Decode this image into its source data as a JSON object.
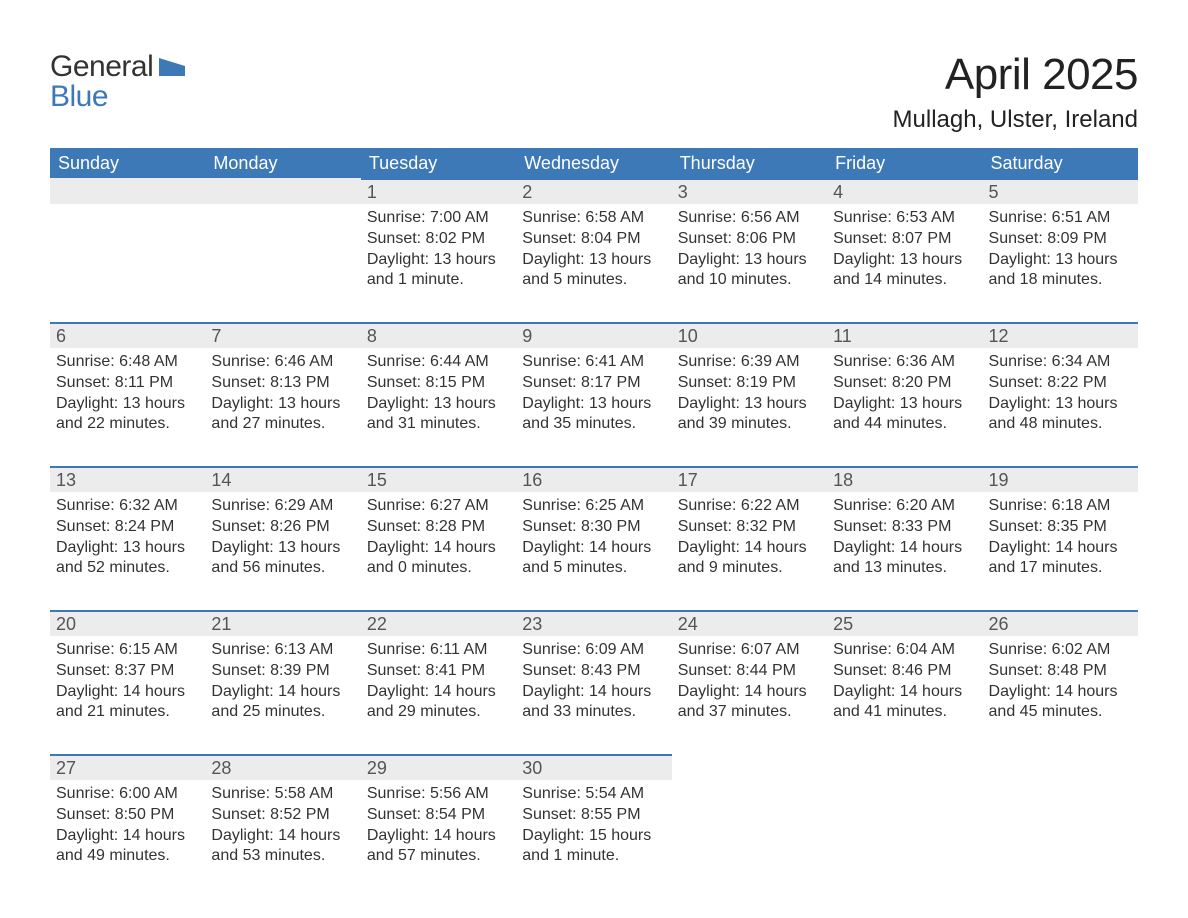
{
  "logo": {
    "word1": "General",
    "word2": "Blue",
    "mark_color": "#3d78b7"
  },
  "header": {
    "title": "April 2025",
    "location": "Mullagh, Ulster, Ireland"
  },
  "calendar": {
    "day_headers": [
      "Sunday",
      "Monday",
      "Tuesday",
      "Wednesday",
      "Thursday",
      "Friday",
      "Saturday"
    ],
    "header_bg": "#3d78b7",
    "header_fg": "#ffffff",
    "daynum_bg": "#ececec",
    "daynum_border": "#3d78b7",
    "text_color": "#333333",
    "weeks": [
      [
        {
          "day": "",
          "sunrise": "",
          "sunset": "",
          "daylight": ""
        },
        {
          "day": "",
          "sunrise": "",
          "sunset": "",
          "daylight": ""
        },
        {
          "day": "1",
          "sunrise": "Sunrise: 7:00 AM",
          "sunset": "Sunset: 8:02 PM",
          "daylight": "Daylight: 13 hours and 1 minute."
        },
        {
          "day": "2",
          "sunrise": "Sunrise: 6:58 AM",
          "sunset": "Sunset: 8:04 PM",
          "daylight": "Daylight: 13 hours and 5 minutes."
        },
        {
          "day": "3",
          "sunrise": "Sunrise: 6:56 AM",
          "sunset": "Sunset: 8:06 PM",
          "daylight": "Daylight: 13 hours and 10 minutes."
        },
        {
          "day": "4",
          "sunrise": "Sunrise: 6:53 AM",
          "sunset": "Sunset: 8:07 PM",
          "daylight": "Daylight: 13 hours and 14 minutes."
        },
        {
          "day": "5",
          "sunrise": "Sunrise: 6:51 AM",
          "sunset": "Sunset: 8:09 PM",
          "daylight": "Daylight: 13 hours and 18 minutes."
        }
      ],
      [
        {
          "day": "6",
          "sunrise": "Sunrise: 6:48 AM",
          "sunset": "Sunset: 8:11 PM",
          "daylight": "Daylight: 13 hours and 22 minutes."
        },
        {
          "day": "7",
          "sunrise": "Sunrise: 6:46 AM",
          "sunset": "Sunset: 8:13 PM",
          "daylight": "Daylight: 13 hours and 27 minutes."
        },
        {
          "day": "8",
          "sunrise": "Sunrise: 6:44 AM",
          "sunset": "Sunset: 8:15 PM",
          "daylight": "Daylight: 13 hours and 31 minutes."
        },
        {
          "day": "9",
          "sunrise": "Sunrise: 6:41 AM",
          "sunset": "Sunset: 8:17 PM",
          "daylight": "Daylight: 13 hours and 35 minutes."
        },
        {
          "day": "10",
          "sunrise": "Sunrise: 6:39 AM",
          "sunset": "Sunset: 8:19 PM",
          "daylight": "Daylight: 13 hours and 39 minutes."
        },
        {
          "day": "11",
          "sunrise": "Sunrise: 6:36 AM",
          "sunset": "Sunset: 8:20 PM",
          "daylight": "Daylight: 13 hours and 44 minutes."
        },
        {
          "day": "12",
          "sunrise": "Sunrise: 6:34 AM",
          "sunset": "Sunset: 8:22 PM",
          "daylight": "Daylight: 13 hours and 48 minutes."
        }
      ],
      [
        {
          "day": "13",
          "sunrise": "Sunrise: 6:32 AM",
          "sunset": "Sunset: 8:24 PM",
          "daylight": "Daylight: 13 hours and 52 minutes."
        },
        {
          "day": "14",
          "sunrise": "Sunrise: 6:29 AM",
          "sunset": "Sunset: 8:26 PM",
          "daylight": "Daylight: 13 hours and 56 minutes."
        },
        {
          "day": "15",
          "sunrise": "Sunrise: 6:27 AM",
          "sunset": "Sunset: 8:28 PM",
          "daylight": "Daylight: 14 hours and 0 minutes."
        },
        {
          "day": "16",
          "sunrise": "Sunrise: 6:25 AM",
          "sunset": "Sunset: 8:30 PM",
          "daylight": "Daylight: 14 hours and 5 minutes."
        },
        {
          "day": "17",
          "sunrise": "Sunrise: 6:22 AM",
          "sunset": "Sunset: 8:32 PM",
          "daylight": "Daylight: 14 hours and 9 minutes."
        },
        {
          "day": "18",
          "sunrise": "Sunrise: 6:20 AM",
          "sunset": "Sunset: 8:33 PM",
          "daylight": "Daylight: 14 hours and 13 minutes."
        },
        {
          "day": "19",
          "sunrise": "Sunrise: 6:18 AM",
          "sunset": "Sunset: 8:35 PM",
          "daylight": "Daylight: 14 hours and 17 minutes."
        }
      ],
      [
        {
          "day": "20",
          "sunrise": "Sunrise: 6:15 AM",
          "sunset": "Sunset: 8:37 PM",
          "daylight": "Daylight: 14 hours and 21 minutes."
        },
        {
          "day": "21",
          "sunrise": "Sunrise: 6:13 AM",
          "sunset": "Sunset: 8:39 PM",
          "daylight": "Daylight: 14 hours and 25 minutes."
        },
        {
          "day": "22",
          "sunrise": "Sunrise: 6:11 AM",
          "sunset": "Sunset: 8:41 PM",
          "daylight": "Daylight: 14 hours and 29 minutes."
        },
        {
          "day": "23",
          "sunrise": "Sunrise: 6:09 AM",
          "sunset": "Sunset: 8:43 PM",
          "daylight": "Daylight: 14 hours and 33 minutes."
        },
        {
          "day": "24",
          "sunrise": "Sunrise: 6:07 AM",
          "sunset": "Sunset: 8:44 PM",
          "daylight": "Daylight: 14 hours and 37 minutes."
        },
        {
          "day": "25",
          "sunrise": "Sunrise: 6:04 AM",
          "sunset": "Sunset: 8:46 PM",
          "daylight": "Daylight: 14 hours and 41 minutes."
        },
        {
          "day": "26",
          "sunrise": "Sunrise: 6:02 AM",
          "sunset": "Sunset: 8:48 PM",
          "daylight": "Daylight: 14 hours and 45 minutes."
        }
      ],
      [
        {
          "day": "27",
          "sunrise": "Sunrise: 6:00 AM",
          "sunset": "Sunset: 8:50 PM",
          "daylight": "Daylight: 14 hours and 49 minutes."
        },
        {
          "day": "28",
          "sunrise": "Sunrise: 5:58 AM",
          "sunset": "Sunset: 8:52 PM",
          "daylight": "Daylight: 14 hours and 53 minutes."
        },
        {
          "day": "29",
          "sunrise": "Sunrise: 5:56 AM",
          "sunset": "Sunset: 8:54 PM",
          "daylight": "Daylight: 14 hours and 57 minutes."
        },
        {
          "day": "30",
          "sunrise": "Sunrise: 5:54 AM",
          "sunset": "Sunset: 8:55 PM",
          "daylight": "Daylight: 15 hours and 1 minute."
        },
        {
          "day": "",
          "sunrise": "",
          "sunset": "",
          "daylight": ""
        },
        {
          "day": "",
          "sunrise": "",
          "sunset": "",
          "daylight": ""
        },
        {
          "day": "",
          "sunrise": "",
          "sunset": "",
          "daylight": ""
        }
      ]
    ]
  }
}
